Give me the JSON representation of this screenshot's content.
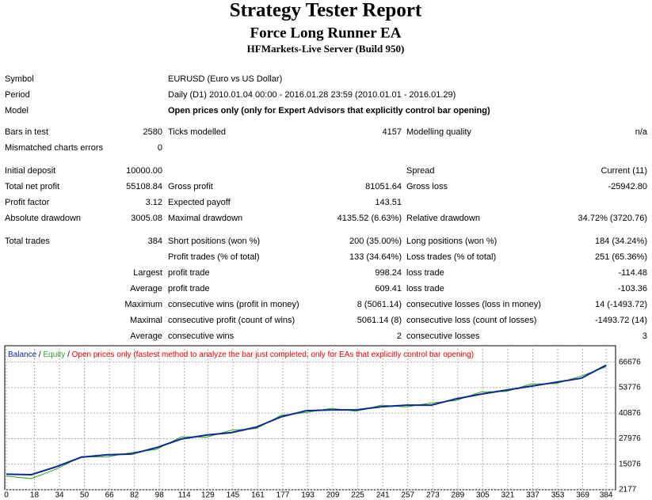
{
  "header": {
    "title": "Strategy Tester Report",
    "subtitle": "Force Long Runner EA",
    "server": "HFMarkets-Live Server (Build 950)"
  },
  "info": [
    [
      "Symbol",
      "EURUSD (Euro vs US Dollar)"
    ],
    [
      "Period",
      "Daily (D1) 2010.01.04 00:00 - 2016.01.28 23:59 (2010.01.01 - 2016.01.29)"
    ],
    [
      "Model",
      "Open prices only (only for Expert Advisors that explicitly control bar opening)"
    ]
  ],
  "stats": [
    [
      "Bars in test",
      "2580",
      "Ticks modelled",
      "4157",
      "Modelling quality",
      "n/a"
    ],
    [
      "Mismatched charts errors",
      "0",
      null,
      null,
      null,
      null
    ],
    [
      "Initial deposit",
      "10000.00",
      null,
      null,
      "Spread",
      "Current (11)"
    ],
    [
      "Total net profit",
      "55108.84",
      "Gross profit",
      "81051.64",
      "Gross loss",
      "-25942.80"
    ],
    [
      "Profit factor",
      "3.12",
      "Expected payoff",
      "143.51",
      null,
      null
    ],
    [
      "Absolute drawdown",
      "3005.08",
      "Maximal drawdown",
      "4135.52 (6.63%)",
      "Relative drawdown",
      "34.72% (3720.76)"
    ],
    [
      "Total trades",
      "384",
      "Short positions (won %)",
      "200 (35.00%)",
      "Long positions (won %)",
      "184 (34.24%)"
    ],
    [
      null,
      null,
      "Profit trades (% of total)",
      "133 (34.64%)",
      "Loss trades (% of total)",
      "251 (65.36%)"
    ],
    [
      null,
      "Largest",
      "profit trade",
      "998.24",
      "loss trade",
      "-114.48"
    ],
    [
      null,
      "Average",
      "profit trade",
      "609.41",
      "loss trade",
      "-103.36"
    ],
    [
      null,
      "Maximum",
      "consecutive wins (profit in money)",
      "8 (5061.14)",
      "consecutive losses (loss in money)",
      "14 (-1493.72)"
    ],
    [
      null,
      "Maximal",
      "consecutive profit (count of wins)",
      "5061.14 (8)",
      "consecutive loss (count of losses)",
      "-1493.72 (14)"
    ],
    [
      null,
      "Average",
      "consecutive wins",
      "2",
      "consecutive losses",
      "3"
    ]
  ],
  "chart_data": {
    "type": "line",
    "legend_separator": "/",
    "note": "Open prices only (fastest method to analyze the bar just completed, only for EAs that explicitly control bar opening)",
    "note_color": "#e00000",
    "x": [
      0,
      16,
      32,
      48,
      64,
      80,
      96,
      112,
      128,
      144,
      160,
      176,
      192,
      208,
      224,
      240,
      256,
      272,
      288,
      304,
      320,
      336,
      352,
      368,
      384
    ],
    "series": [
      {
        "name": "Balance",
        "color": "#0a2a8c",
        "values": [
          10000,
          9770,
          13800,
          18600,
          19800,
          20200,
          23400,
          27800,
          29800,
          31000,
          33800,
          39000,
          42100,
          42500,
          42500,
          44100,
          44900,
          44900,
          48100,
          50500,
          52500,
          54500,
          56500,
          58500,
          65108
        ]
      },
      {
        "name": "Equity",
        "color": "#2ea02e",
        "values": [
          9000,
          7800,
          12600,
          18900,
          18700,
          20900,
          22500,
          28900,
          28700,
          32200,
          33100,
          39800,
          41200,
          43300,
          41800,
          44900,
          44000,
          46000,
          47300,
          51600,
          51800,
          55600,
          55800,
          59600,
          64300
        ]
      }
    ],
    "xlim": [
      0,
      390
    ],
    "xticks": [
      0,
      18,
      34,
      50,
      66,
      82,
      98,
      114,
      129,
      145,
      161,
      177,
      193,
      209,
      225,
      241,
      257,
      273,
      289,
      305,
      321,
      337,
      353,
      369,
      384
    ],
    "ylim": [
      2177,
      74922
    ],
    "yticks": [
      2177,
      15076,
      27976,
      40876,
      53776,
      66676
    ],
    "grid": true
  }
}
